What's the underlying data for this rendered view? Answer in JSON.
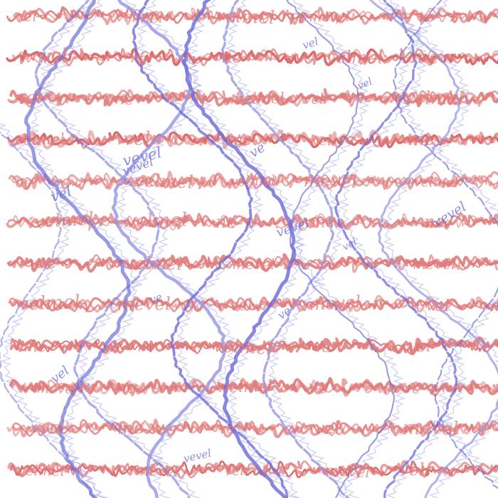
{
  "artwork": {
    "background_color": "#ffffff",
    "red_color": "#e07a7a",
    "red_dark_color": "#d85a5a",
    "blue_color": "#6f6fd9",
    "blue_light_color": "#9a9ae6",
    "red_text_fragments": [
      "me",
      "vel",
      "ve",
      "ne",
      "velmel",
      "mevel"
    ],
    "blue_text_fragments": [
      "vel",
      "ve",
      "vevel"
    ]
  }
}
